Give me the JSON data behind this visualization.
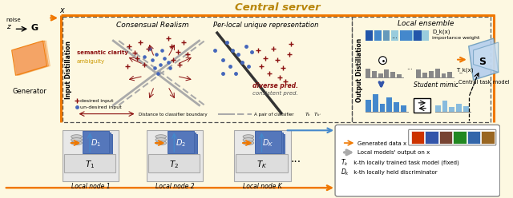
{
  "bg_color": "#fdf8e1",
  "orange": "#f07800",
  "dark_red": "#8b1010",
  "blue_med": "#6699cc",
  "blue_dark": "#2255aa",
  "blue_dk_bar": "#2255aa",
  "blue_light_bar": "#99ccee",
  "gray_bar": "#888888",
  "gold": "#b8860b",
  "title": "Central server",
  "input_distill": "Input Distillation",
  "output_distill": "Output Distillation",
  "consensual": "Consensual Realism",
  "per_local": "Per-local unique representation",
  "local_ensemble": "Local ensemble",
  "semantic_clarity": "semantic clarity",
  "ambiguity": "ambiguity",
  "diverse_pred": "diverse pred.",
  "consistent_pred": "consistent pred.",
  "desired_input": "desired input",
  "undesired_input": "un-desired input",
  "dist_boundary": "Distance to classifier boundary",
  "dk_x": "D_k(x)",
  "importance_weight": "importance weight",
  "tk_x": "T_k(x)",
  "student_mimic": "Student mimic",
  "central_task": "Central task model",
  "s_label": "S",
  "generated_data": "Generated data x",
  "local_models_output": "Local models' output on x",
  "tk_desc": "k-th locally trained task model (fixed)",
  "dk_desc": "k-th locally held discriminator",
  "local_node1": "Local node 1",
  "local_node2": "Local node 2",
  "local_nodeK": "Local node K",
  "noise_label": "noise",
  "z_label": "z",
  "g_label": "G",
  "x_label": "x",
  "generator_label": "Generator"
}
